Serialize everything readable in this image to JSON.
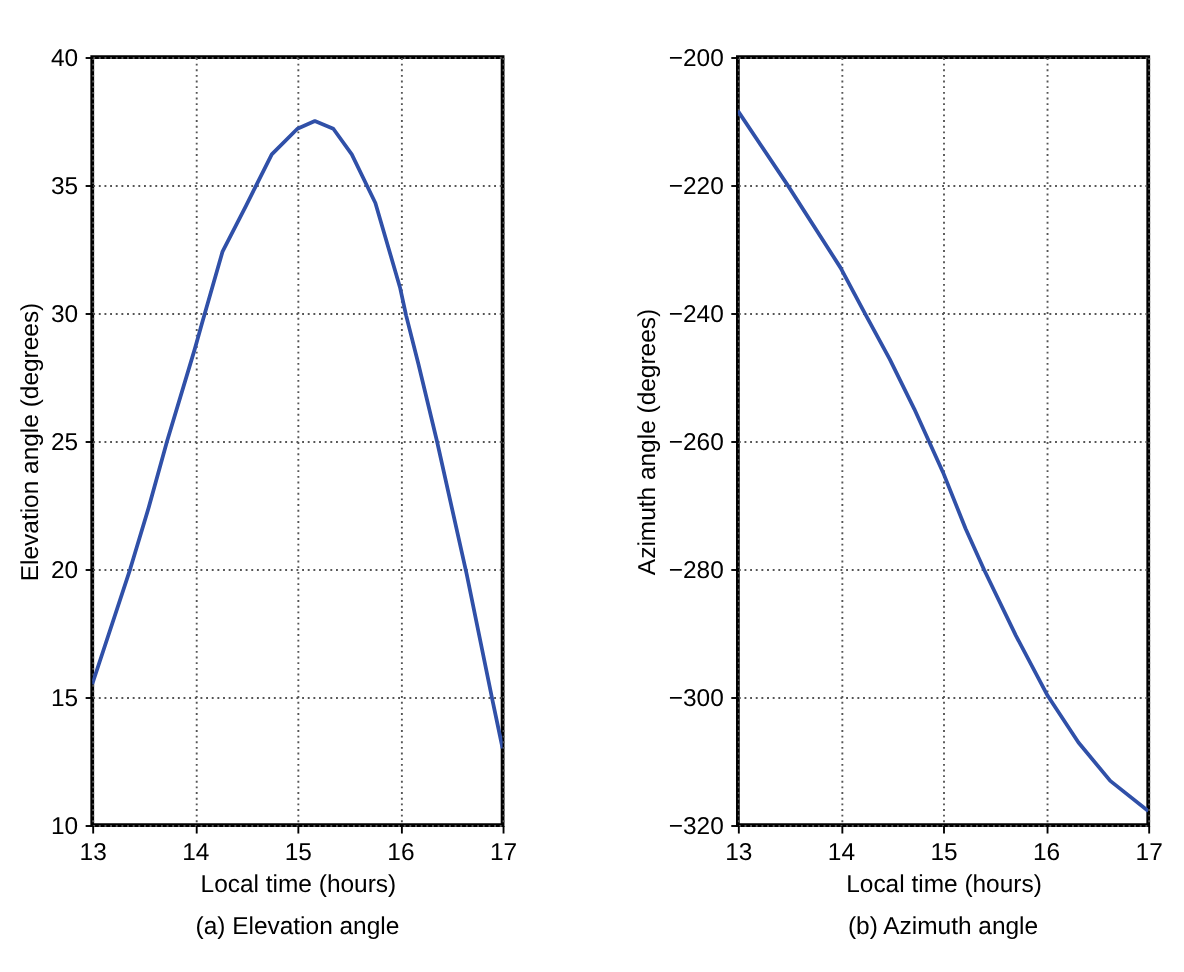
{
  "chart_data": [
    {
      "type": "line",
      "title": "(a) Elevation angle",
      "xlabel": "Local time (hours)",
      "ylabel": "Elevation angle (degrees)",
      "xlim": [
        13,
        17
      ],
      "xticks": [
        13,
        14,
        15,
        16,
        17
      ],
      "ylim": [
        10,
        40
      ],
      "yticks": [
        10,
        15,
        20,
        25,
        30,
        35,
        40
      ],
      "grid": true,
      "line_style": "solid",
      "series": [
        {
          "color": "#3050a8",
          "x": [
            13,
            13.37,
            13.55,
            13.73,
            14,
            14.07,
            14.27,
            14.5,
            14.75,
            15,
            15.17,
            15.35,
            15.53,
            15.76,
            16,
            16.06,
            16.18,
            16.36,
            16.65,
            16.9,
            17
          ],
          "values": [
            15.5,
            20,
            22.4,
            25,
            28.6,
            29.6,
            32.4,
            34.2,
            36.2,
            37.2,
            37.5,
            37.2,
            36.2,
            34.3,
            31,
            29.9,
            28,
            25,
            19.8,
            14.9,
            13
          ]
        }
      ]
    },
    {
      "type": "line",
      "title": "(b) Azimuth angle",
      "xlabel": "Local time (hours)",
      "ylabel": "Azimuth angle (degrees)",
      "xlim": [
        13,
        17
      ],
      "xticks": [
        13,
        14,
        15,
        16,
        17
      ],
      "ylim": [
        -320,
        -200
      ],
      "yticks": [
        -320,
        -300,
        -280,
        -260,
        -240,
        -220,
        -200
      ],
      "grid": true,
      "line_style": "solid",
      "series": [
        {
          "color": "#3050a8",
          "x": [
            13,
            13.48,
            14,
            14.23,
            14.48,
            14.72,
            15,
            15.22,
            15.4,
            15.71,
            16.02,
            16.32,
            16.63,
            17
          ],
          "values": [
            -208.4,
            -219.9,
            -232.9,
            -239.8,
            -247.2,
            -255,
            -264.9,
            -273.7,
            -280.1,
            -290.4,
            -299.8,
            -307.1,
            -313.1,
            -317.8
          ]
        }
      ]
    }
  ]
}
